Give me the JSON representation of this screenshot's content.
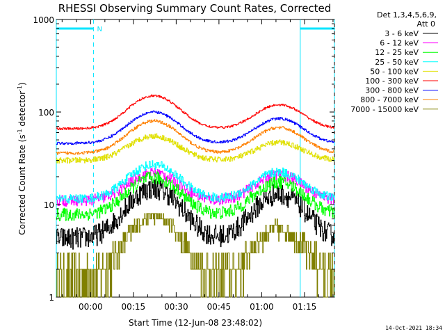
{
  "chart_data": {
    "type": "line",
    "title": "RHESSI Observing Summary Count Rates, Corrected",
    "xlabel": "Start Time (12-Jun-08 23:48:02)",
    "ylabel_main": "Corrected Count Rate (s",
    "ylabel_sup1": "-1",
    "ylabel_mid": " detector",
    "ylabel_sup2": "-1",
    "ylabel_end": ")",
    "yscale": "log",
    "ylim": [
      1,
      1000
    ],
    "xlim_minutes": [
      -12.03,
      85.5
    ],
    "y_ticks": [
      {
        "value": 1,
        "label": "1"
      },
      {
        "value": 10,
        "label": "10"
      },
      {
        "value": 100,
        "label": "100"
      },
      {
        "value": 1000,
        "label": "1000"
      }
    ],
    "x_ticks": [
      {
        "minutes": 0,
        "label": "00:00"
      },
      {
        "minutes": 15,
        "label": "00:15"
      },
      {
        "minutes": 30,
        "label": "00:30"
      },
      {
        "minutes": 45,
        "label": "00:45"
      },
      {
        "minutes": 60,
        "label": "01:00"
      },
      {
        "minutes": 75,
        "label": "01:15"
      }
    ],
    "legend_header": [
      "Det 1,3,4,5,6,9,",
      "Att 0"
    ],
    "series": [
      {
        "name": "3 - 6 keV",
        "color": "#000000",
        "base": 4.3,
        "peak1": 15,
        "peak2": 13,
        "noise": 0.12
      },
      {
        "name": "6 - 12 keV",
        "color": "#ff00ff",
        "base": 11,
        "peak1": 22,
        "peak2": 21,
        "noise": 0.06
      },
      {
        "name": "12 - 25 keV",
        "color": "#00ff00",
        "base": 7.8,
        "peak1": 19.5,
        "peak2": 17.5,
        "noise": 0.07
      },
      {
        "name": "25 - 50 keV",
        "color": "#00ffff",
        "base": 11.5,
        "peak1": 27,
        "peak2": 22.5,
        "noise": 0.05
      },
      {
        "name": "50 - 100 keV",
        "color": "#e0e000",
        "base": 30,
        "peak1": 55,
        "peak2": 47,
        "noise": 0.03
      },
      {
        "name": "100 - 300 keV",
        "color": "#ff0000",
        "base": 66,
        "peak1": 150,
        "peak2": 120,
        "noise": 0.012
      },
      {
        "name": "300 - 800 keV",
        "color": "#0000ff",
        "base": 46,
        "peak1": 100,
        "peak2": 85,
        "noise": 0.014
      },
      {
        "name": "800 - 7000 keV",
        "color": "#ff8000",
        "base": 36,
        "peak1": 80,
        "peak2": 68,
        "noise": 0.016
      },
      {
        "name": "7000 - 15000 keV",
        "color": "#808000",
        "base": 1.6,
        "peak1": 7.5,
        "peak2": 5.5,
        "noise": 0.25
      }
    ],
    "flare_peaks_minutes": [
      22,
      66
    ],
    "markers": {
      "saa_intervals_minutes": [
        [
          -12.03,
          1
        ],
        [
          73.5,
          85.5
        ]
      ],
      "saa_label": "N",
      "night_solid_minutes": [
        -12.03,
        73.5
      ],
      "night_dashed_minutes": [
        1,
        85.5
      ]
    },
    "timestamp": "14-Oct-2021 18:34"
  }
}
